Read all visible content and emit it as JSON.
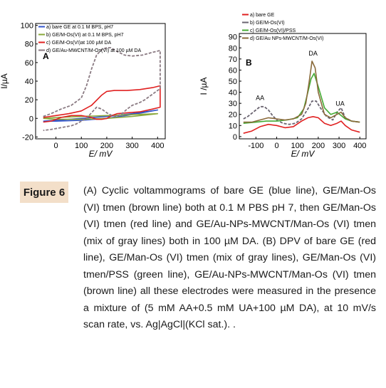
{
  "figure_label": "Figure 6",
  "caption": "(A) Cyclic voltammograms of bare GE (blue line), GE/Man-Os (VI) tmen (brown line) both at 0.1 M PBS pH 7, then GE/Man-Os (VI) tmen (red line) and GE/Au-NPs-MWCNT/Man-Os (VI) tmen (mix of gray lines) both in 100 µM DA. (B) DPV of bare GE (red line), GE/Man-Os (VI) tmen (mix of gray lines), GE/Man-Os (VI) tmen/PSS (green line), GE/Au-NPs-MWCNT/Man-Os (VI) tmen (brown line) all these electrodes were measured in the presence a mixture of (5 mM AA+0.5 mM UA+100 µM DA), at 10 mV/s scan rate, vs. Ag|AgCl|(KCl sat.). .",
  "chart_data": [
    {
      "type": "line",
      "panel_label": "A",
      "xlabel": "E/ mV",
      "ylabel": "I/µA",
      "xlim": [
        -80,
        430
      ],
      "ylim": [
        -22,
        102
      ],
      "xticks": [
        0,
        100,
        200,
        300,
        400
      ],
      "yticks": [
        -20,
        0,
        20,
        40,
        60,
        80,
        100
      ],
      "legend_position": "top-left",
      "legend": [
        "a) bare GE at 0.1 M BPS, pH7",
        "b) GE/M-Os(VI) at 0.1 M BPS, pH7",
        "c) GE/M-Os(VI)at 100 µM DA",
        "d) GE/Au-MWCNT/M-Os(VI) at 100 µM DA"
      ],
      "series": [
        {
          "color": "#3355cc",
          "x": [
            -50,
            0,
            100,
            200,
            300,
            400,
            400,
            300,
            200,
            100,
            0,
            -50
          ],
          "y": [
            -3,
            -2,
            0,
            2,
            5,
            9,
            9,
            4,
            0,
            -2,
            -3,
            -3
          ]
        },
        {
          "color": "#8aa83a",
          "x": [
            -50,
            0,
            100,
            200,
            300,
            400,
            400,
            300,
            200,
            100,
            0,
            -50
          ],
          "y": [
            0,
            1,
            2,
            3,
            4,
            5,
            5,
            2,
            0,
            -1,
            -1,
            0
          ]
        },
        {
          "color": "#e02020",
          "x": [
            -50,
            0,
            50,
            100,
            140,
            180,
            200,
            230,
            280,
            330,
            380,
            410,
            410,
            380,
            330,
            280,
            240,
            220,
            200,
            180,
            160,
            140,
            120,
            100,
            60,
            20,
            -20,
            -50
          ],
          "y": [
            1,
            3,
            5,
            8,
            14,
            25,
            29,
            30,
            30,
            31,
            33,
            35,
            12,
            10,
            7,
            6,
            5,
            3,
            0,
            -1,
            -1,
            1,
            2,
            3,
            3,
            1,
            -3,
            -4
          ]
        },
        {
          "color": "#8a7a82",
          "x": [
            -50,
            -20,
            20,
            60,
            100,
            120,
            140,
            160,
            180,
            200,
            215,
            240,
            270,
            300,
            340,
            380,
            410,
            410,
            390,
            370,
            350,
            330,
            300,
            280,
            260,
            240,
            220,
            200,
            180,
            160,
            140,
            120,
            100,
            80,
            60,
            20,
            -20,
            -50
          ],
          "y": [
            2,
            5,
            10,
            14,
            22,
            35,
            53,
            68,
            74,
            76,
            76,
            72,
            68,
            67,
            68,
            71,
            73,
            32,
            28,
            24,
            20,
            17,
            14,
            10,
            5,
            2,
            3,
            6,
            10,
            12,
            6,
            0,
            -3,
            -6,
            -8,
            -10,
            -12,
            -13
          ]
        }
      ]
    },
    {
      "type": "line",
      "panel_label": "B",
      "xlabel": "E/ mV",
      "ylabel": "I /µA",
      "xlim": [
        -180,
        430
      ],
      "ylim": [
        -2,
        93
      ],
      "xticks": [
        -100,
        0,
        100,
        200,
        300,
        400
      ],
      "yticks": [
        0,
        10,
        20,
        30,
        40,
        50,
        60,
        70,
        80,
        90
      ],
      "legend_position": "top",
      "legend": [
        "a) bare GE",
        "b) GE/M-Os(VI)",
        "c) GE/M-Os(VI)/PSS",
        "d) GE/Au NPs-MWCNT/M-Os(VI)"
      ],
      "annotations": [
        {
          "text": "AA",
          "x": -80,
          "y": 33
        },
        {
          "text": "DA",
          "x": 175,
          "y": 73
        },
        {
          "text": "UA",
          "x": 305,
          "y": 28
        }
      ],
      "series": [
        {
          "color": "#e02020",
          "x": [
            -160,
            -120,
            -80,
            -40,
            0,
            40,
            80,
            120,
            150,
            175,
            200,
            230,
            260,
            290,
            310,
            330,
            360,
            400
          ],
          "y": [
            3,
            5,
            9,
            11,
            10,
            8,
            9,
            14,
            17,
            18,
            17,
            12,
            10,
            12,
            14,
            10,
            6,
            4
          ]
        },
        {
          "color": "#6a6470",
          "x": [
            -160,
            -140,
            -120,
            -100,
            -80,
            -60,
            -40,
            -20,
            0,
            30,
            60,
            90,
            120,
            150,
            170,
            190,
            210,
            240,
            270,
            290,
            310,
            330,
            360,
            400
          ],
          "y": [
            16,
            18,
            21,
            24,
            27,
            27,
            24,
            19,
            15,
            12,
            11,
            12,
            16,
            25,
            32,
            32,
            26,
            18,
            15,
            22,
            26,
            17,
            14,
            13
          ]
        },
        {
          "color": "#44aa33",
          "x": [
            -160,
            -100,
            -50,
            0,
            50,
            100,
            130,
            150,
            165,
            180,
            200,
            230,
            260,
            290,
            310,
            330,
            360,
            400
          ],
          "y": [
            12,
            13,
            14,
            14,
            15,
            17,
            25,
            40,
            52,
            57,
            45,
            26,
            20,
            22,
            19,
            16,
            14,
            13
          ]
        },
        {
          "color": "#8a6a3a",
          "x": [
            -160,
            -120,
            -80,
            -40,
            0,
            40,
            80,
            120,
            140,
            155,
            170,
            185,
            200,
            230,
            260,
            290,
            310,
            330,
            360,
            400
          ],
          "y": [
            13,
            13,
            15,
            17,
            16,
            15,
            16,
            20,
            30,
            48,
            68,
            62,
            40,
            20,
            17,
            20,
            22,
            17,
            14,
            13
          ]
        }
      ]
    }
  ]
}
